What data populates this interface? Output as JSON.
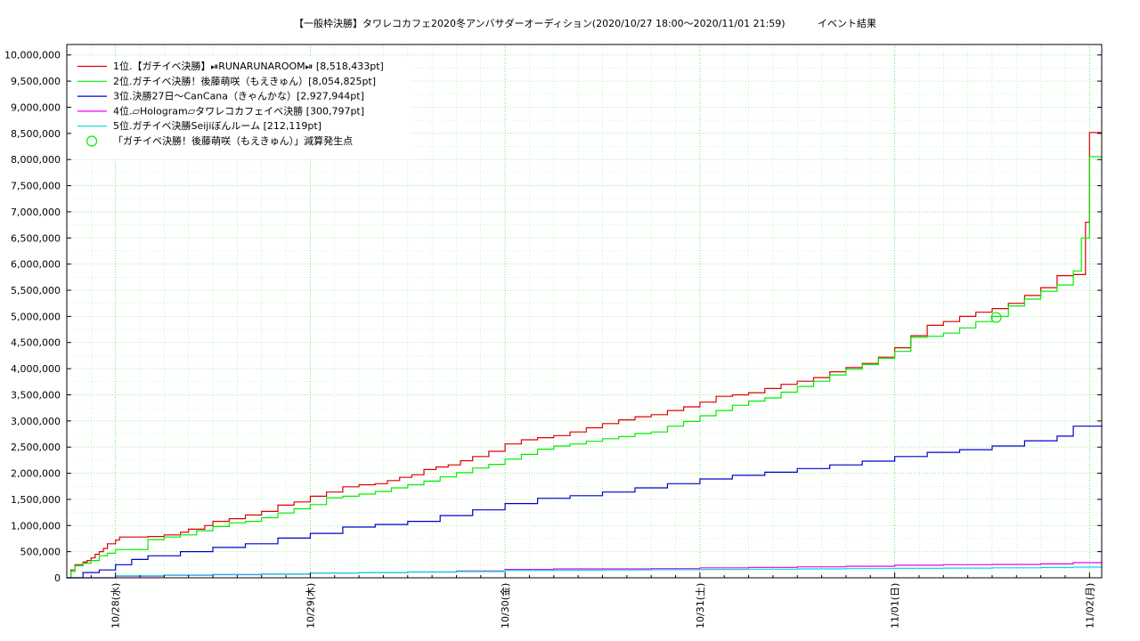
{
  "chart_data": {
    "type": "line",
    "title": "【一般枠決勝】タワレコカフェ2020冬アンバサダーオーディション(2020/10/27 18:00〜2020/11/01 21:59)",
    "subtitle": "イベント結果",
    "xlabel": "",
    "ylabel": "",
    "x_unit": "hours since 2020/10/27 18:00",
    "xlim": [
      0,
      127.5
    ],
    "ylim": [
      0,
      10200000
    ],
    "yticks": [
      0,
      500000,
      1000000,
      1500000,
      2000000,
      2500000,
      3000000,
      3500000,
      4000000,
      4500000,
      5000000,
      5500000,
      6000000,
      6500000,
      7000000,
      7500000,
      8000000,
      8500000,
      9000000,
      9500000,
      10000000
    ],
    "ytick_labels": [
      "0",
      "500,000",
      "1,000,000",
      "1,500,000",
      "2,000,000",
      "2,500,000",
      "3,000,000",
      "3,500,000",
      "4,000,000",
      "4,500,000",
      "5,000,000",
      "5,500,000",
      "6,000,000",
      "6,500,000",
      "7,000,000",
      "7,500,000",
      "8,000,000",
      "8,500,000",
      "9,000,000",
      "9,500,000",
      "10,000,000"
    ],
    "xticks": [
      6,
      30,
      54,
      78,
      102,
      126
    ],
    "xtick_labels": [
      "10/28(水)",
      "10/29(木)",
      "10/30(金)",
      "10/31(土)",
      "11/01(日)",
      "11/02(月)"
    ],
    "grid": true,
    "legend_position": "top-left",
    "series": [
      {
        "name": "1位.【ガチイベ決勝】⏯RUNARUNAROOM⏯ [8,518,433pt]",
        "color": "#dd0000",
        "x": [
          0,
          0.5,
          1,
          2,
          2.5,
          3,
          3.5,
          4,
          4.5,
          5,
          6,
          6.5,
          10,
          12,
          14,
          15,
          17,
          18,
          20,
          22,
          24,
          26,
          28,
          30,
          32,
          34,
          36,
          38,
          39.5,
          41,
          42.5,
          44,
          45.5,
          47,
          48.5,
          50,
          52,
          54,
          56,
          58,
          60,
          62,
          64,
          66,
          68,
          70,
          72,
          74,
          76,
          78,
          80,
          82,
          84,
          86,
          88,
          90,
          92,
          94,
          96,
          98,
          100,
          102,
          104,
          106,
          108,
          110,
          112,
          114,
          116,
          118,
          120,
          122,
          124,
          125.5,
          126,
          127.5
        ],
        "values": [
          0,
          150000,
          250000,
          300000,
          330000,
          380000,
          450000,
          500000,
          560000,
          650000,
          720000,
          780000,
          790000,
          820000,
          870000,
          930000,
          1000000,
          1080000,
          1130000,
          1200000,
          1270000,
          1390000,
          1450000,
          1560000,
          1640000,
          1740000,
          1780000,
          1800000,
          1860000,
          1920000,
          1970000,
          2070000,
          2120000,
          2160000,
          2240000,
          2320000,
          2420000,
          2560000,
          2640000,
          2680000,
          2720000,
          2790000,
          2870000,
          2950000,
          3020000,
          3080000,
          3120000,
          3200000,
          3270000,
          3360000,
          3470000,
          3500000,
          3540000,
          3620000,
          3700000,
          3760000,
          3830000,
          3940000,
          4020000,
          4100000,
          4220000,
          4400000,
          4630000,
          4830000,
          4900000,
          5000000,
          5080000,
          5150000,
          5250000,
          5400000,
          5550000,
          5780000,
          5800000,
          6800000,
          8518433,
          8518433
        ]
      },
      {
        "name": "2位.ガチイベ決勝！後藤萌咲（もえきゅん）[8,054,825pt]",
        "color": "#00ee00",
        "x": [
          0,
          0.5,
          1,
          2,
          3,
          4,
          5,
          6,
          10,
          12,
          14,
          16,
          18,
          20,
          22,
          24,
          26,
          28,
          30,
          32,
          34,
          36,
          38,
          40,
          42,
          44,
          46,
          48,
          50,
          52,
          54,
          56,
          58,
          60,
          62,
          64,
          66,
          68,
          70,
          72,
          74,
          76,
          78,
          80,
          82,
          84,
          86,
          88,
          90,
          92,
          94,
          96,
          98,
          100,
          102,
          104,
          106,
          108,
          110,
          112,
          114,
          116,
          118,
          120,
          122,
          124,
          125,
          126,
          127.5
        ],
        "values": [
          0,
          120000,
          230000,
          280000,
          330000,
          420000,
          470000,
          540000,
          730000,
          780000,
          820000,
          900000,
          980000,
          1050000,
          1080000,
          1150000,
          1240000,
          1320000,
          1400000,
          1530000,
          1560000,
          1600000,
          1650000,
          1720000,
          1780000,
          1850000,
          1930000,
          2010000,
          2100000,
          2170000,
          2270000,
          2360000,
          2460000,
          2520000,
          2560000,
          2610000,
          2660000,
          2700000,
          2760000,
          2790000,
          2900000,
          2990000,
          3100000,
          3200000,
          3300000,
          3380000,
          3440000,
          3550000,
          3660000,
          3760000,
          3880000,
          3990000,
          4080000,
          4200000,
          4330000,
          4600000,
          4620000,
          4680000,
          4780000,
          4900000,
          5000000,
          5200000,
          5330000,
          5480000,
          5600000,
          5870000,
          6500000,
          8054825,
          8054825
        ]
      },
      {
        "name": "3位.決勝27日〜CanCana（きゃんかな）[2,927,944pt]",
        "color": "#0000cc",
        "x": [
          0,
          2,
          4,
          6,
          8,
          10,
          14,
          18,
          22,
          26,
          30,
          34,
          38,
          42,
          46,
          50,
          54,
          58,
          62,
          66,
          70,
          74,
          78,
          82,
          86,
          90,
          94,
          98,
          102,
          106,
          110,
          114,
          118,
          122,
          124,
          127.5
        ],
        "values": [
          0,
          100000,
          150000,
          250000,
          350000,
          420000,
          500000,
          580000,
          650000,
          760000,
          850000,
          970000,
          1020000,
          1080000,
          1190000,
          1300000,
          1420000,
          1520000,
          1570000,
          1640000,
          1720000,
          1800000,
          1890000,
          1960000,
          2020000,
          2090000,
          2160000,
          2230000,
          2320000,
          2400000,
          2450000,
          2520000,
          2620000,
          2710000,
          2900000,
          2927944
        ]
      },
      {
        "name": "4位.▱Hologram▱タワレコカフェイベ決勝 [300,797pt]",
        "color": "#ee00ee",
        "x": [
          0,
          6,
          12,
          18,
          24,
          30,
          36,
          42,
          48,
          54,
          60,
          66,
          72,
          78,
          84,
          90,
          96,
          102,
          108,
          114,
          120,
          124,
          127.5
        ],
        "values": [
          0,
          30000,
          50000,
          60000,
          70000,
          90000,
          100000,
          110000,
          130000,
          160000,
          170000,
          170000,
          175000,
          190000,
          200000,
          210000,
          220000,
          240000,
          250000,
          255000,
          265000,
          290000,
          300797
        ]
      },
      {
        "name": "5位.ガチイベ決勝Seijiぼんルーム [212,119pt]",
        "color": "#00dddd",
        "x": [
          0,
          6,
          12,
          18,
          24,
          30,
          36,
          42,
          48,
          54,
          60,
          66,
          72,
          78,
          84,
          90,
          96,
          102,
          108,
          114,
          120,
          124,
          127.5
        ],
        "values": [
          0,
          40000,
          55000,
          65000,
          75000,
          90000,
          100000,
          110000,
          120000,
          140000,
          145000,
          150000,
          155000,
          160000,
          165000,
          170000,
          175000,
          180000,
          185000,
          190000,
          195000,
          205000,
          212119
        ]
      }
    ],
    "annotation": {
      "label": "「ガチイベ決勝！後藤萌咲（もえきゅん）」減算発生点",
      "color": "#00ee00",
      "points": [
        {
          "x": 114.5,
          "y": 4980000
        }
      ]
    }
  }
}
